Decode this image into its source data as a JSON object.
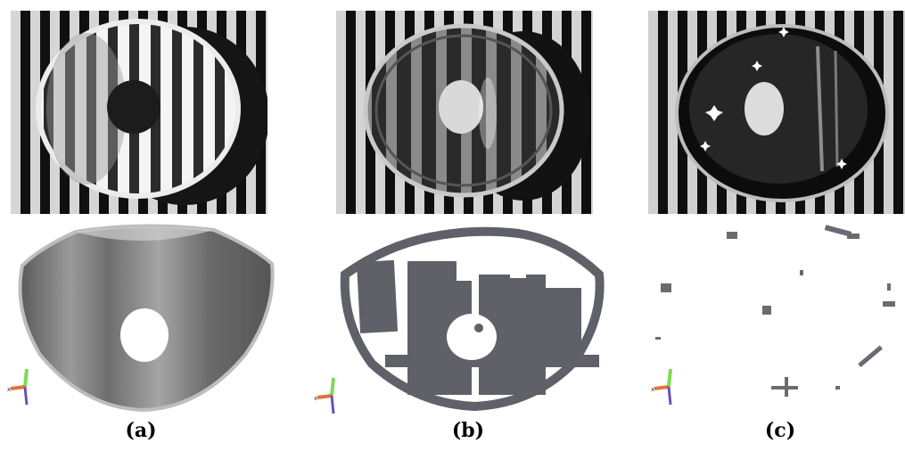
{
  "figure": {
    "panels": [
      {
        "id": "a",
        "caption": "(a)",
        "top_image": "lens-on-stripe-pattern-photo",
        "bottom_image": "smooth-gray-3d-reconstruction"
      },
      {
        "id": "b",
        "caption": "(b)",
        "top_image": "clear-lens-on-stripe-pattern-photo",
        "bottom_image": "partial-gray-3d-reconstruction"
      },
      {
        "id": "c",
        "caption": "(c)",
        "top_image": "specular-lens-on-stripe-pattern-photo",
        "bottom_image": "sparse-fragment-3d-reconstruction"
      }
    ],
    "axis_icon": "xyz-axis-icon",
    "colors": {
      "stripe_light": "#d9d9d9",
      "stripe_dark": "#111111",
      "recon_gray": "#5f6068",
      "surface_gray": "#8a8a8a"
    }
  }
}
